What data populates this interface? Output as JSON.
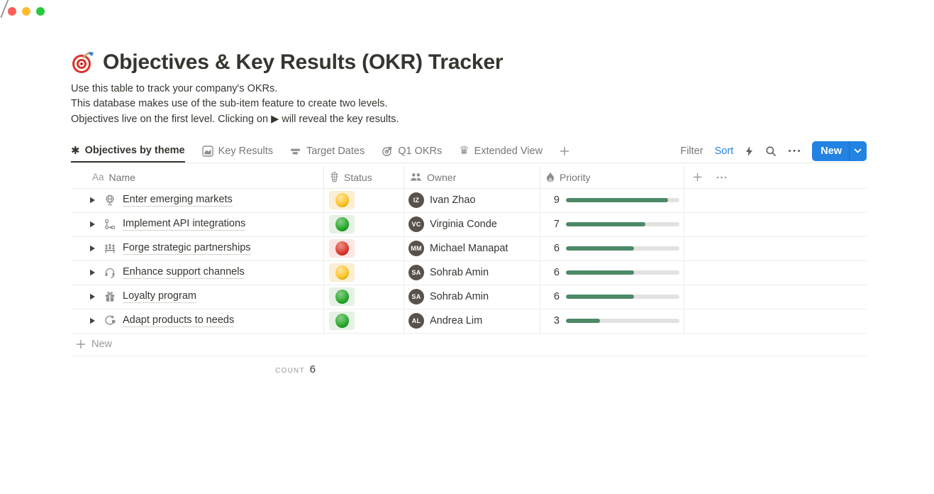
{
  "window": {
    "controls": [
      {
        "name": "close",
        "color": "#ff5f57"
      },
      {
        "name": "minimize",
        "color": "#febc2e"
      },
      {
        "name": "zoom",
        "color": "#28c840"
      }
    ]
  },
  "page": {
    "emoji": "🎯",
    "title": "Objectives & Key Results (OKR) Tracker",
    "description_lines": [
      "Use this table to track your company's OKRs.",
      "This database makes use of the sub-item feature to create two levels.",
      "Objectives live on the first level. Clicking on ▶ will reveal the key results."
    ]
  },
  "toolbar": {
    "tabs": [
      {
        "label": "Objectives by theme",
        "icon": "asterisk-icon",
        "active": true
      },
      {
        "label": "Key Results",
        "icon": "area-chart-icon",
        "active": false
      },
      {
        "label": "Target Dates",
        "icon": "timeline-icon",
        "active": false
      },
      {
        "label": "Q1 OKRs",
        "icon": "target-icon",
        "active": false
      },
      {
        "label": "Extended View",
        "icon": "crown-icon",
        "active": false
      }
    ],
    "add_view_icon": "plus-icon",
    "filter_label": "Filter",
    "sort_label": "Sort",
    "new_button_label": "New"
  },
  "table": {
    "columns": [
      {
        "label": "Name",
        "icon": "text-icon"
      },
      {
        "label": "Status",
        "icon": "traffic-light-icon"
      },
      {
        "label": "Owner",
        "icon": "people-icon"
      },
      {
        "label": "Priority",
        "icon": "flame-icon"
      }
    ],
    "rows": [
      {
        "name": "Enter emerging markets",
        "icon": "globe-icon",
        "status": "yellow",
        "owner": "Ivan Zhao",
        "initials": "IZ",
        "priority": 9
      },
      {
        "name": "Implement API integrations",
        "icon": "workflow-icon",
        "status": "green",
        "owner": "Virginia Conde",
        "initials": "VC",
        "priority": 7
      },
      {
        "name": "Forge strategic partnerships",
        "icon": "meeting-icon",
        "status": "red",
        "owner": "Michael Manapat",
        "initials": "MM",
        "priority": 6
      },
      {
        "name": "Enhance support channels",
        "icon": "headset-icon",
        "status": "yellow",
        "owner": "Sohrab Amin",
        "initials": "SA",
        "priority": 6
      },
      {
        "name": "Loyalty program",
        "icon": "gift-icon",
        "status": "green",
        "owner": "Sohrab Amin",
        "initials": "SA",
        "priority": 6
      },
      {
        "name": "Adapt products to needs",
        "icon": "sync-icon",
        "status": "green",
        "owner": "Andrea Lim",
        "initials": "AL",
        "priority": 3
      }
    ],
    "priority_max": 10,
    "new_row_label": "New",
    "footer": {
      "count_label": "COUNT",
      "count_value": "6"
    }
  },
  "colors": {
    "accent": "#2383e2",
    "bar_fill": "#4d8968",
    "bar_track": "#e3e2e0",
    "status": {
      "yellow": {
        "bg": "#fbeed3",
        "dot": "#fcc419"
      },
      "green": {
        "bg": "#e6f1e5",
        "dot": "#21a826"
      },
      "red": {
        "bg": "#fbe5e3",
        "dot": "#da352a"
      }
    }
  }
}
